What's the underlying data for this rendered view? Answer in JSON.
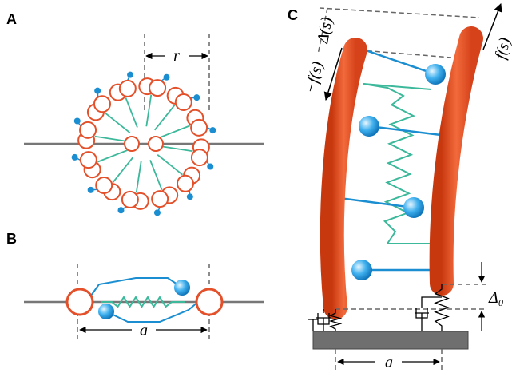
{
  "panels": [
    {
      "label": "A",
      "dimension": "r"
    },
    {
      "label": "B",
      "dimension": "a"
    },
    {
      "label": "C",
      "dimension": "a",
      "force_left": "−f(s)",
      "force_right": "f(s)",
      "shift": "Δ(s)",
      "offset": "Δ₀"
    }
  ]
}
